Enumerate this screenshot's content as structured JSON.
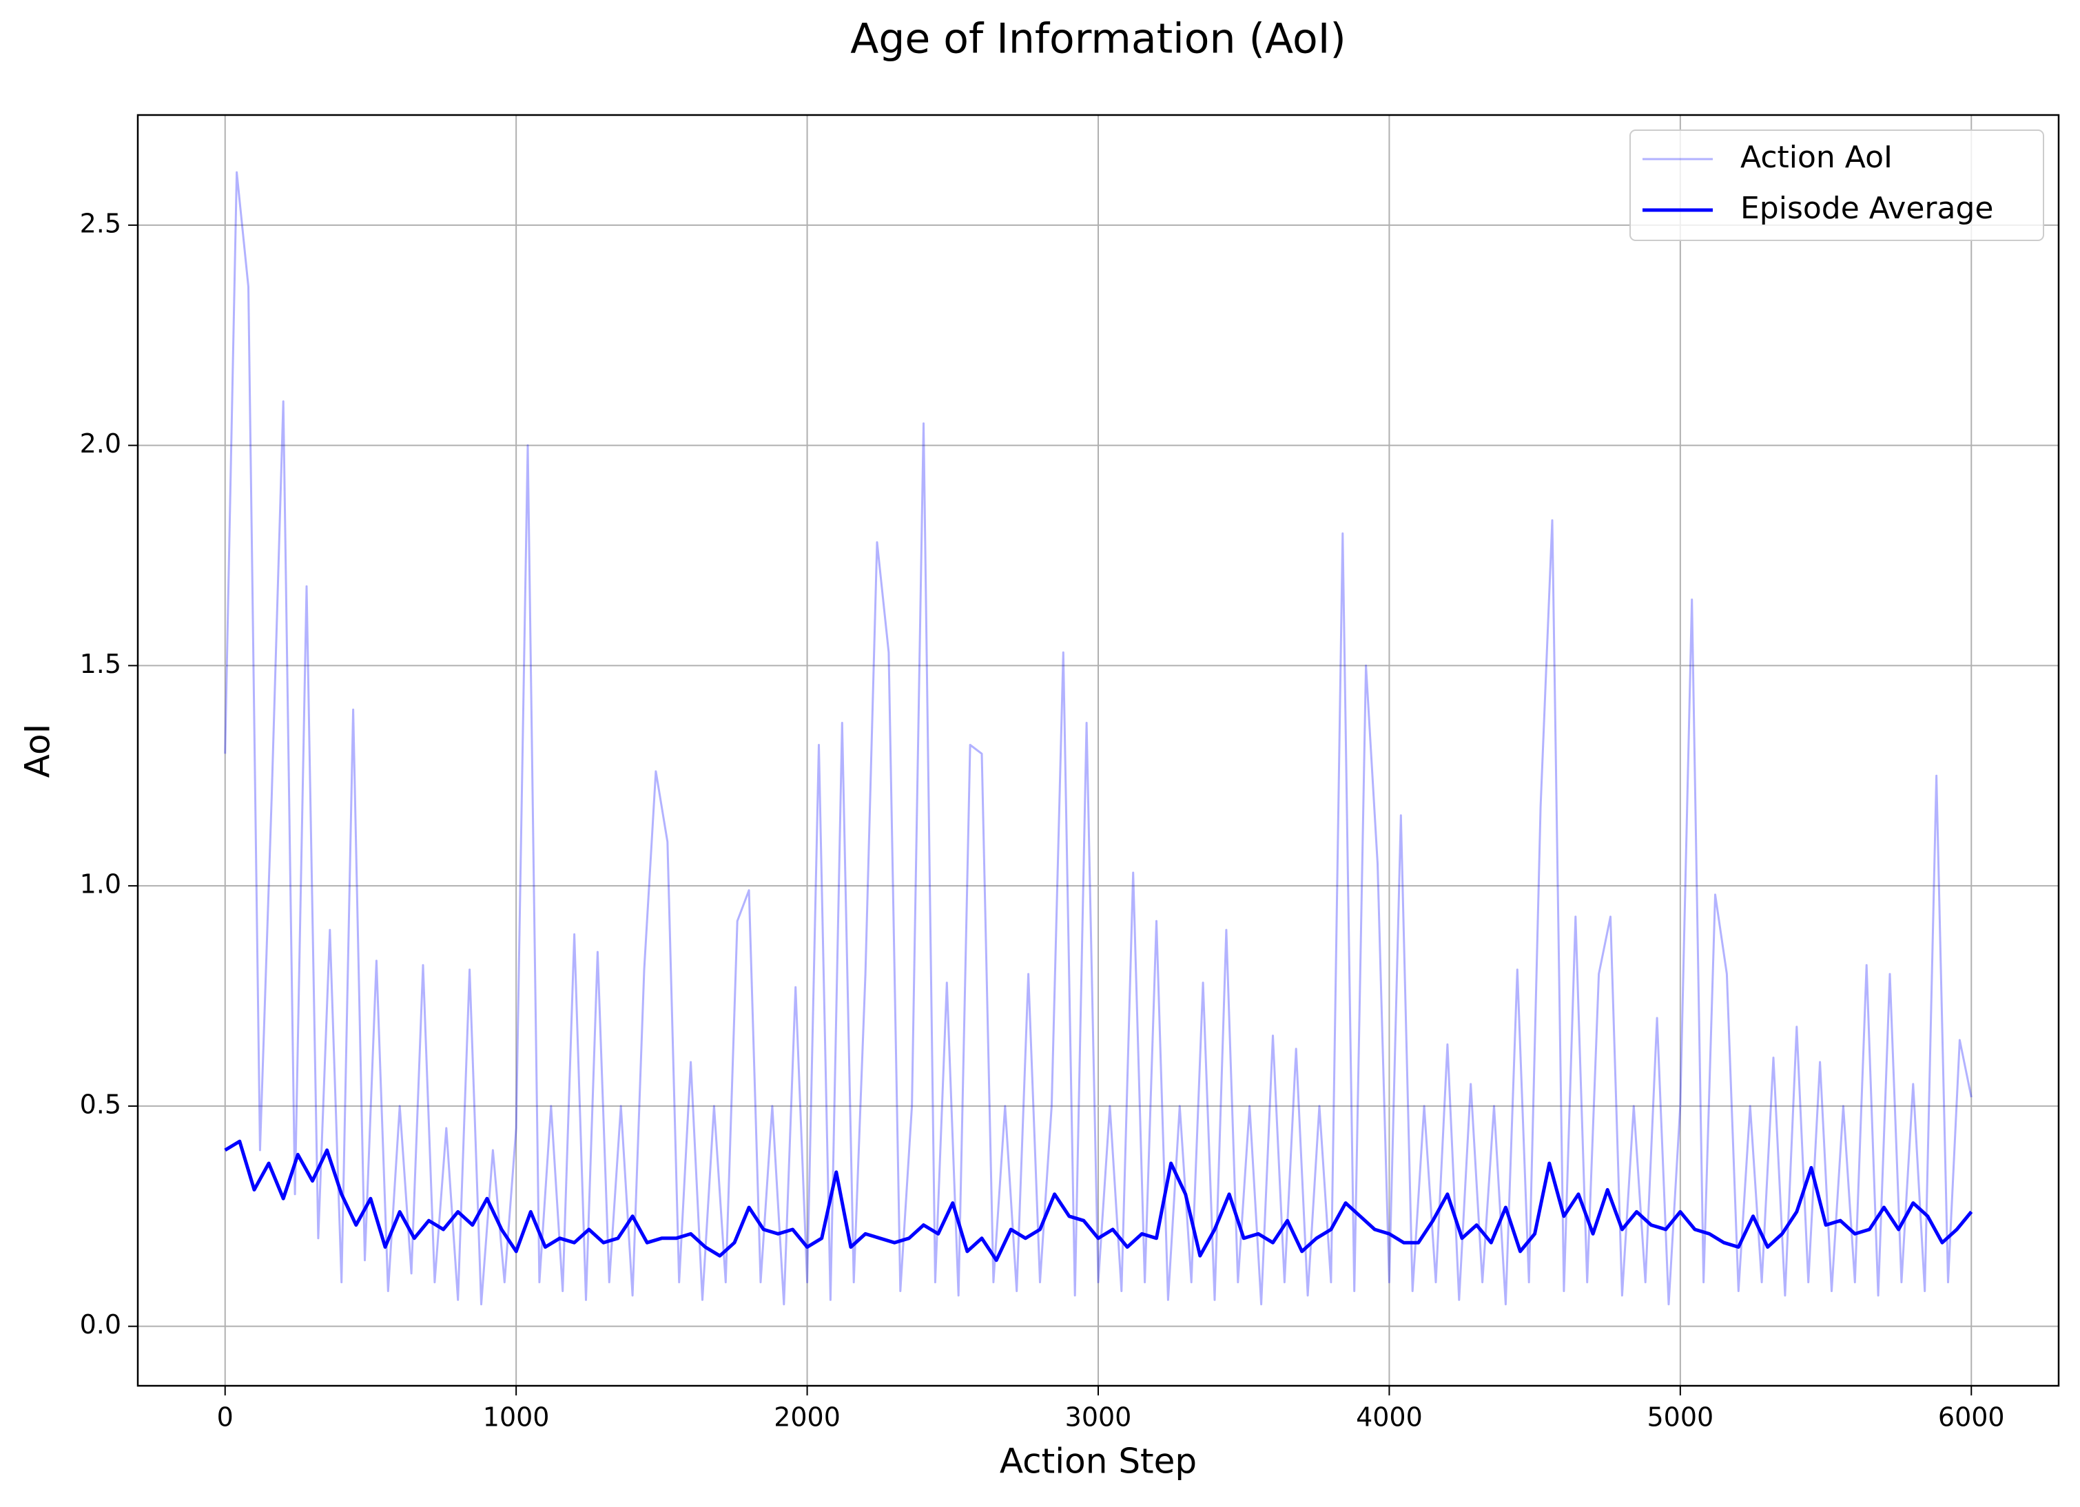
{
  "chart_data": {
    "type": "line",
    "title": "Age of Information (AoI)",
    "xlabel": "Action Step",
    "ylabel": "AoI",
    "xlim": [
      -300,
      6300
    ],
    "ylim": [
      -0.135,
      2.75
    ],
    "xticks": [
      0,
      1000,
      2000,
      3000,
      4000,
      5000,
      6000
    ],
    "yticks": [
      {
        "value": 0,
        "label": "0.0"
      },
      0.5,
      {
        "value": 1,
        "label": "1.0"
      },
      1.5,
      {
        "value": 2,
        "label": "2.0"
      },
      2.5
    ],
    "grid": true,
    "legend": "upper right",
    "series": [
      {
        "name": "Action AoI",
        "color": "#0000ff",
        "alpha": 0.3,
        "linewidth": 3,
        "x": [
          0,
          40,
          80,
          120,
          160,
          200,
          240,
          280,
          320,
          360,
          400,
          440,
          480,
          520,
          560,
          600,
          640,
          680,
          720,
          760,
          800,
          840,
          880,
          920,
          960,
          1000,
          1040,
          1080,
          1120,
          1160,
          1200,
          1240,
          1280,
          1320,
          1360,
          1400,
          1440,
          1480,
          1520,
          1560,
          1600,
          1640,
          1680,
          1720,
          1760,
          1800,
          1840,
          1880,
          1920,
          1960,
          2000,
          2040,
          2080,
          2120,
          2160,
          2200,
          2240,
          2280,
          2320,
          2360,
          2400,
          2440,
          2480,
          2520,
          2560,
          2600,
          2640,
          2680,
          2720,
          2760,
          2800,
          2840,
          2880,
          2920,
          2960,
          3000,
          3040,
          3080,
          3120,
          3160,
          3200,
          3240,
          3280,
          3320,
          3360,
          3400,
          3440,
          3480,
          3520,
          3560,
          3600,
          3640,
          3680,
          3720,
          3760,
          3800,
          3840,
          3880,
          3920,
          3960,
          4000,
          4040,
          4080,
          4120,
          4160,
          4200,
          4240,
          4280,
          4320,
          4360,
          4400,
          4440,
          4480,
          4520,
          4560,
          4600,
          4640,
          4680,
          4720,
          4760,
          4800,
          4840,
          4880,
          4920,
          4960,
          5000,
          5040,
          5080,
          5120,
          5160,
          5200,
          5240,
          5280,
          5320,
          5360,
          5400,
          5440,
          5480,
          5520,
          5560,
          5600,
          5640,
          5680,
          5720,
          5760,
          5800,
          5840,
          5880,
          5920,
          5960,
          6000
        ],
        "values": [
          1.3,
          2.62,
          2.36,
          0.4,
          1.2,
          2.1,
          0.3,
          1.68,
          0.2,
          0.9,
          0.1,
          1.4,
          0.15,
          0.83,
          0.08,
          0.5,
          0.12,
          0.82,
          0.1,
          0.45,
          0.06,
          0.81,
          0.05,
          0.4,
          0.1,
          0.45,
          2.0,
          0.1,
          0.5,
          0.08,
          0.89,
          0.06,
          0.85,
          0.1,
          0.5,
          0.07,
          0.81,
          1.26,
          1.1,
          0.1,
          0.6,
          0.06,
          0.5,
          0.1,
          0.92,
          0.99,
          0.1,
          0.5,
          0.05,
          0.77,
          0.1,
          1.32,
          0.06,
          1.37,
          0.1,
          0.8,
          1.78,
          1.53,
          0.08,
          0.5,
          2.05,
          0.1,
          0.78,
          0.07,
          1.32,
          1.3,
          0.1,
          0.5,
          0.08,
          0.8,
          0.1,
          0.5,
          1.53,
          0.07,
          1.37,
          0.1,
          0.5,
          0.08,
          1.03,
          0.1,
          0.92,
          0.06,
          0.5,
          0.1,
          0.78,
          0.06,
          0.9,
          0.1,
          0.5,
          0.05,
          0.66,
          0.1,
          0.63,
          0.07,
          0.5,
          0.1,
          1.8,
          0.08,
          1.5,
          1.05,
          0.1,
          1.16,
          0.08,
          0.5,
          0.1,
          0.64,
          0.06,
          0.55,
          0.1,
          0.5,
          0.05,
          0.81,
          0.1,
          1.18,
          1.83,
          0.08,
          0.93,
          0.1,
          0.8,
          0.93,
          0.07,
          0.5,
          0.1,
          0.7,
          0.05,
          0.5,
          1.65,
          0.1,
          0.98,
          0.8,
          0.08,
          0.5,
          0.1,
          0.61,
          0.07,
          0.68,
          0.1,
          0.6,
          0.08,
          0.5,
          0.1,
          0.82,
          0.07,
          0.8,
          0.1,
          0.55,
          0.08,
          1.25,
          0.1,
          0.65,
          0.52
        ]
      },
      {
        "name": "Episode Average",
        "color": "#0000ff",
        "alpha": 1,
        "linewidth": 5,
        "x": [
          0,
          50,
          100,
          150,
          200,
          250,
          300,
          350,
          400,
          450,
          500,
          550,
          600,
          650,
          700,
          750,
          800,
          850,
          900,
          950,
          1000,
          1050,
          1100,
          1150,
          1200,
          1250,
          1300,
          1350,
          1400,
          1450,
          1500,
          1550,
          1600,
          1650,
          1700,
          1750,
          1800,
          1850,
          1900,
          1950,
          2000,
          2050,
          2100,
          2150,
          2200,
          2250,
          2300,
          2350,
          2400,
          2450,
          2500,
          2550,
          2600,
          2650,
          2700,
          2750,
          2800,
          2850,
          2900,
          2950,
          3000,
          3050,
          3100,
          3150,
          3200,
          3250,
          3300,
          3350,
          3400,
          3450,
          3500,
          3550,
          3600,
          3650,
          3700,
          3750,
          3800,
          3850,
          3900,
          3950,
          4000,
          4050,
          4100,
          4150,
          4200,
          4250,
          4300,
          4350,
          4400,
          4450,
          4500,
          4550,
          4600,
          4650,
          4700,
          4750,
          4800,
          4850,
          4900,
          4950,
          5000,
          5050,
          5100,
          5150,
          5200,
          5250,
          5300,
          5350,
          5400,
          5450,
          5500,
          5550,
          5600,
          5650,
          5700,
          5750,
          5800,
          5850,
          5900,
          5950,
          6000
        ],
        "values": [
          0.4,
          0.42,
          0.31,
          0.37,
          0.29,
          0.39,
          0.33,
          0.4,
          0.3,
          0.23,
          0.29,
          0.18,
          0.26,
          0.2,
          0.24,
          0.22,
          0.26,
          0.23,
          0.29,
          0.22,
          0.17,
          0.26,
          0.18,
          0.2,
          0.19,
          0.22,
          0.19,
          0.2,
          0.25,
          0.19,
          0.2,
          0.2,
          0.21,
          0.18,
          0.16,
          0.19,
          0.27,
          0.22,
          0.21,
          0.22,
          0.18,
          0.2,
          0.35,
          0.18,
          0.21,
          0.2,
          0.19,
          0.2,
          0.23,
          0.21,
          0.28,
          0.17,
          0.2,
          0.15,
          0.22,
          0.2,
          0.22,
          0.3,
          0.25,
          0.24,
          0.2,
          0.22,
          0.18,
          0.21,
          0.2,
          0.37,
          0.3,
          0.16,
          0.22,
          0.3,
          0.2,
          0.21,
          0.19,
          0.24,
          0.17,
          0.2,
          0.22,
          0.28,
          0.25,
          0.22,
          0.21,
          0.19,
          0.19,
          0.24,
          0.3,
          0.2,
          0.23,
          0.19,
          0.27,
          0.17,
          0.21,
          0.37,
          0.25,
          0.3,
          0.21,
          0.31,
          0.22,
          0.26,
          0.23,
          0.22,
          0.26,
          0.22,
          0.21,
          0.19,
          0.18,
          0.25,
          0.18,
          0.21,
          0.26,
          0.36,
          0.23,
          0.24,
          0.21,
          0.22,
          0.27,
          0.22,
          0.28,
          0.25,
          0.19,
          0.22,
          0.26
        ]
      }
    ]
  }
}
